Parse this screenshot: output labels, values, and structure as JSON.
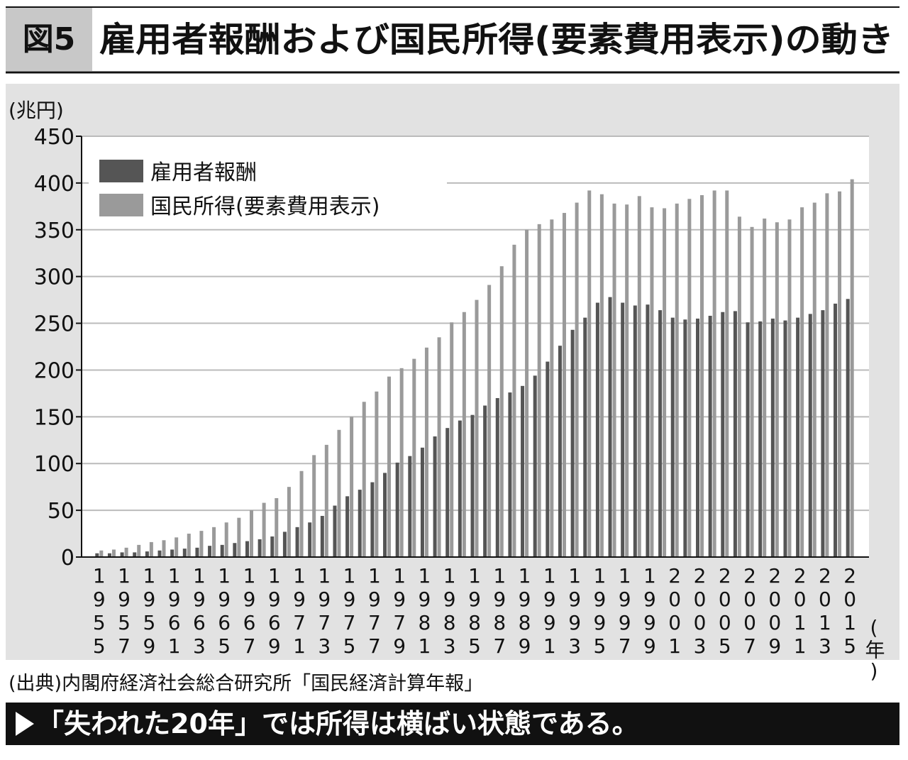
{
  "chart_data": {
    "type": "bar",
    "figure_label": "図5",
    "title": "雇用者報酬および国民所得(要素費用表示)の動き",
    "y_label": "(兆円)",
    "x_label": "(年)",
    "source": "(出典)内閣府経済社会総合研究所「国民経済計算年報」",
    "caption": "「失われた20年」では所得は横ばい状態である。",
    "categories": [
      "1955",
      null,
      "1957",
      null,
      "1959",
      null,
      "1961",
      null,
      "1963",
      null,
      "1965",
      null,
      "1967",
      null,
      "1969",
      null,
      "1971",
      null,
      "1973",
      null,
      "1975",
      null,
      "1977",
      null,
      "1979",
      null,
      "1981",
      null,
      "1983",
      null,
      "1985",
      null,
      "1987",
      null,
      "1989",
      null,
      "1991",
      null,
      "1993",
      null,
      "1995",
      null,
      "1997",
      null,
      "1999",
      null,
      "2001",
      null,
      "2003",
      null,
      "2005",
      null,
      "2007",
      null,
      "2009",
      null,
      "2011",
      null,
      "2013",
      null,
      "2015"
    ],
    "series": [
      {
        "name": "雇用者報酬",
        "color": "#555555",
        "values": [
          4,
          4,
          5,
          5,
          6,
          7,
          8,
          9,
          10,
          12,
          13,
          15,
          17,
          19,
          22,
          27,
          32,
          37,
          44,
          55,
          65,
          72,
          80,
          90,
          101,
          108,
          117,
          129,
          138,
          146,
          152,
          162,
          170,
          176,
          183,
          194,
          209,
          226,
          243,
          256,
          272,
          278,
          272,
          269,
          270,
          264,
          256,
          254,
          255,
          258,
          262,
          263,
          251,
          252,
          255,
          253,
          256,
          260,
          264,
          271,
          276
        ]
      },
      {
        "name": "国民所得(要素費用表示)",
        "color": "#9a9a9a",
        "values": [
          7,
          8,
          10,
          13,
          16,
          18,
          21,
          25,
          28,
          32,
          37,
          42,
          50,
          58,
          63,
          75,
          92,
          109,
          120,
          136,
          150,
          166,
          177,
          193,
          202,
          212,
          224,
          235,
          251,
          262,
          275,
          291,
          311,
          334,
          350,
          356,
          361,
          368,
          379,
          392,
          388,
          378,
          377,
          386,
          374,
          373,
          378,
          383,
          387,
          392,
          392,
          364,
          353,
          362,
          358,
          361,
          374,
          379,
          389,
          391,
          404
        ]
      }
    ],
    "ylim": [
      0,
      450
    ],
    "yticks": [
      0,
      50,
      100,
      150,
      200,
      250,
      300,
      350,
      400,
      450
    ],
    "grid": true
  }
}
